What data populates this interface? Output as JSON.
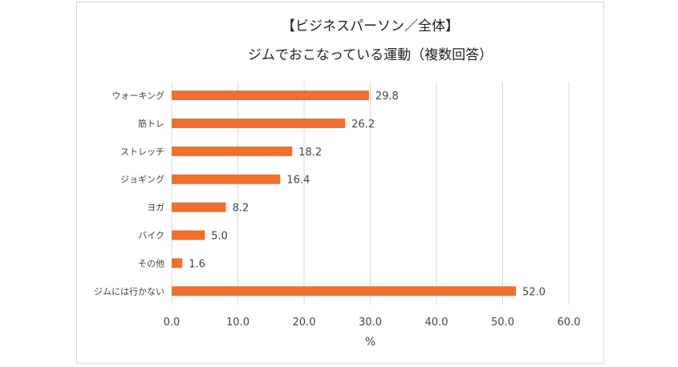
{
  "chart_data": {
    "type": "bar",
    "orientation": "horizontal",
    "title": [
      "【ビジネスパーソン／全体】",
      "ジムでおこなっている運動（複数回答）"
    ],
    "categories": [
      "ウォーキング",
      "筋トレ",
      "ストレッチ",
      "ジョギング",
      "ヨガ",
      "バイク",
      "その他",
      "ジムには行かない"
    ],
    "values": [
      29.8,
      26.2,
      18.2,
      16.4,
      8.2,
      5.0,
      1.6,
      52.0
    ],
    "xlabel": "%",
    "ylabel": "",
    "xlim": [
      0,
      60
    ],
    "xticks": [
      0,
      10,
      20,
      30,
      40,
      50,
      60
    ],
    "grid": true,
    "bar_color": "#ed7031"
  }
}
